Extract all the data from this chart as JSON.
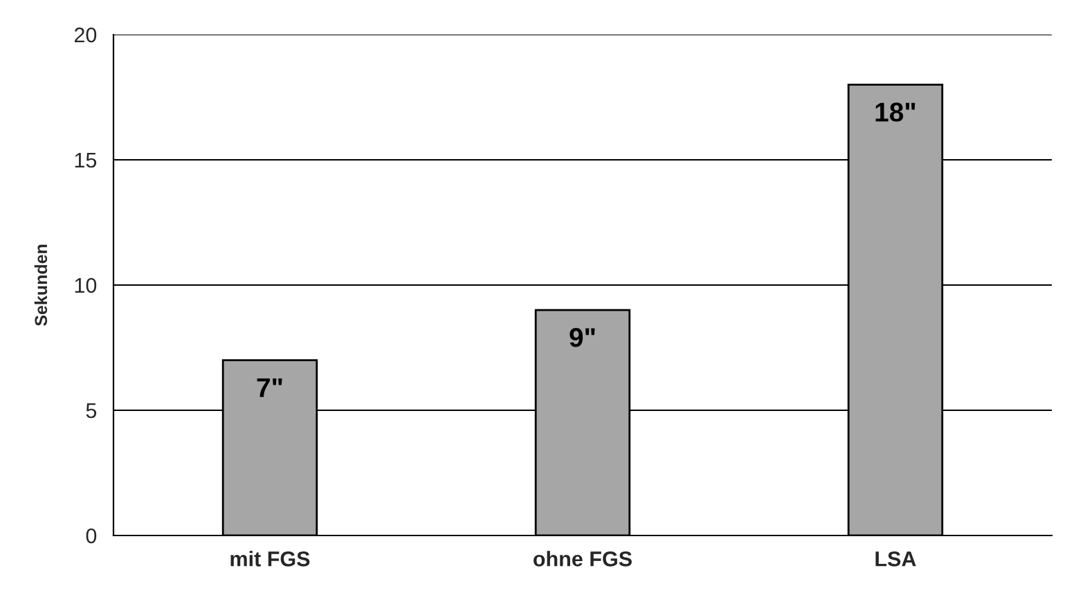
{
  "chart_data": {
    "type": "bar",
    "ylabel": "Sekunden",
    "categories": [
      "mit FGS",
      "ohne FGS",
      "LSA"
    ],
    "values": [
      7,
      9,
      18
    ],
    "value_labels": [
      "7\"",
      "9\"",
      "18\""
    ],
    "color": "#a6a6a6",
    "ylim": [
      0,
      20
    ],
    "yticks": [
      0,
      5,
      10,
      15,
      20
    ],
    "grid": "y",
    "legend": false
  }
}
